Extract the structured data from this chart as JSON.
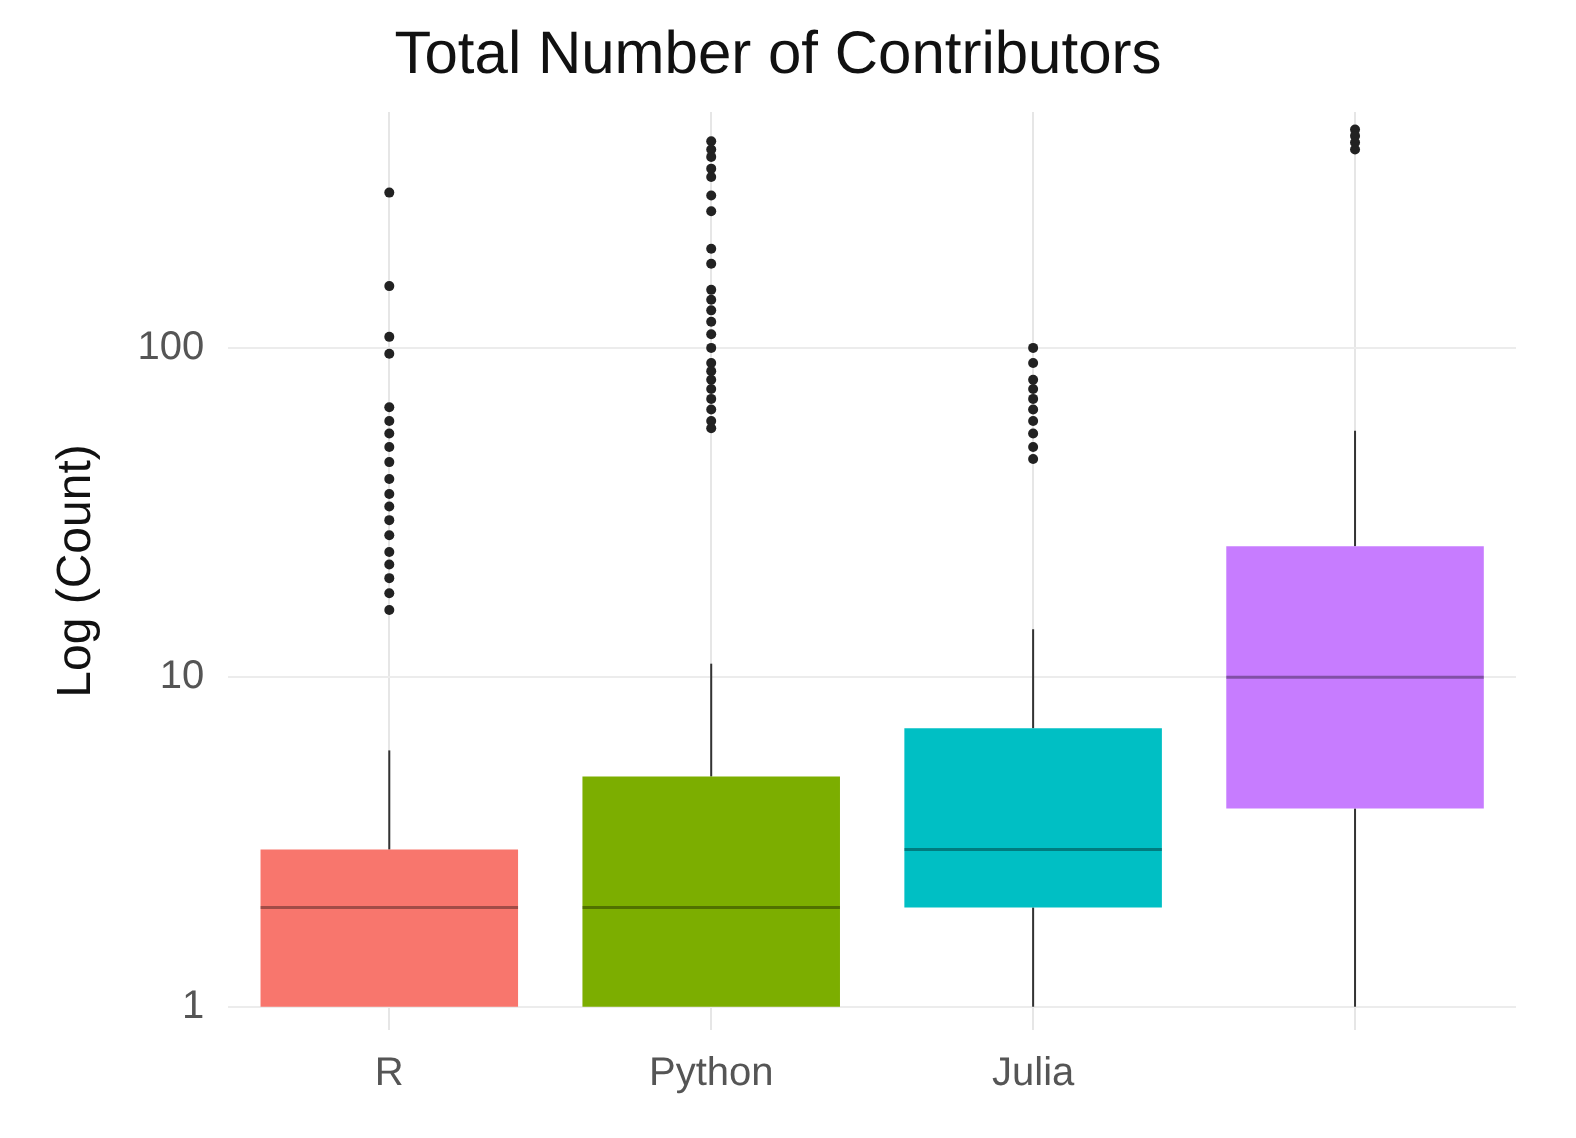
{
  "chart_data": {
    "type": "box",
    "title": "Total Number of Contributors",
    "ylabel": "Log (Count)",
    "categories": [
      "R",
      "Python",
      "Julia",
      null
    ],
    "colors": [
      "#f8766d",
      "#7cae00",
      "#00bfc4",
      "#c77cff"
    ],
    "boxes": [
      {
        "low": 1,
        "q1": 1,
        "median": 2,
        "q3": 3,
        "high": 6,
        "outliers": [
          296,
          154,
          108,
          96,
          66,
          60,
          55,
          50,
          45,
          40,
          36,
          33,
          30,
          27,
          24,
          22,
          20,
          18,
          16
        ]
      },
      {
        "low": 1,
        "q1": 1,
        "median": 2,
        "q3": 5,
        "high": 11,
        "outliers": [
          424,
          400,
          380,
          350,
          330,
          290,
          260,
          200,
          180,
          150,
          140,
          130,
          120,
          110,
          100,
          90,
          85,
          80,
          75,
          70,
          65,
          60,
          57
        ]
      },
      {
        "low": 1,
        "q1": 2,
        "median": 3,
        "q3": 7,
        "high": 14,
        "outliers": [
          100,
          90,
          80,
          75,
          70,
          65,
          60,
          55,
          50,
          46
        ]
      },
      {
        "low": 1,
        "q1": 4,
        "median": 10,
        "q3": 25,
        "high": 56,
        "outliers": [
          460,
          440,
          420,
          400
        ]
      }
    ],
    "log": "y",
    "ylim": [
      0.85,
      520
    ],
    "yticks": [
      1,
      10,
      100
    ],
    "grid": true,
    "legend": false
  }
}
